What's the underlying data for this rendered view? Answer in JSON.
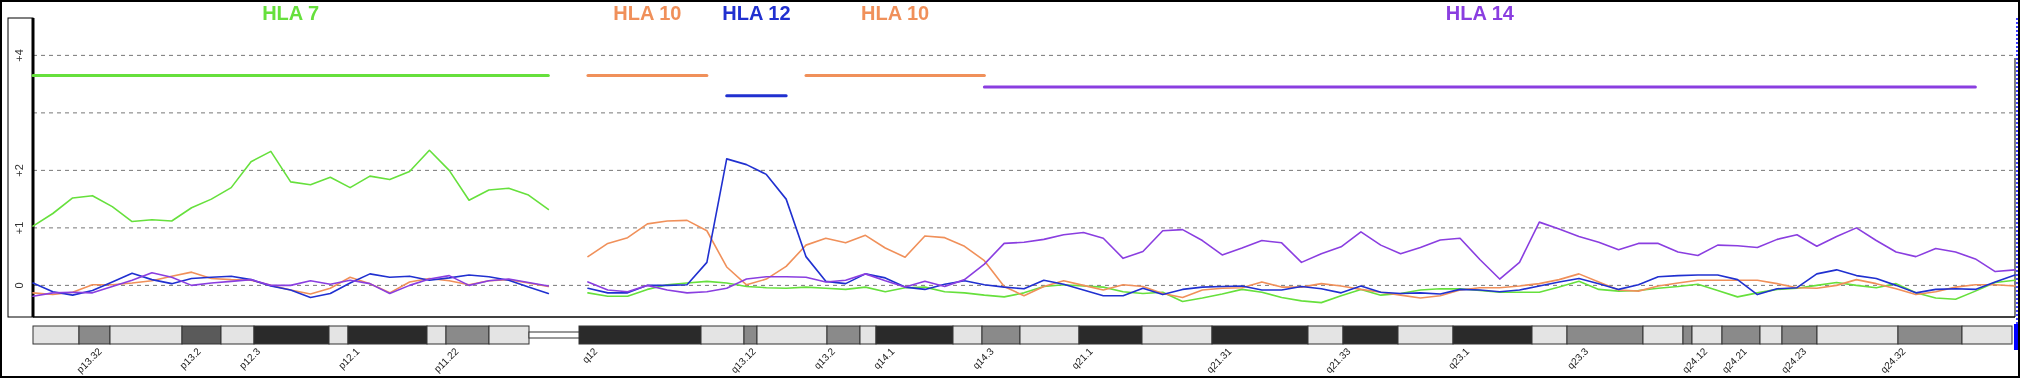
{
  "chart_data": {
    "type": "line",
    "ylim": [
      -0.55,
      4.65
    ],
    "categories": [
      null,
      null,
      null,
      "p13.32",
      null,
      null,
      null,
      null,
      "p13.2",
      null,
      null,
      "p12.3",
      null,
      null,
      null,
      null,
      "p12.1",
      null,
      null,
      null,
      null,
      "p11.22",
      null,
      null,
      null,
      null,
      null,
      null,
      "q12",
      null,
      null,
      null,
      null,
      null,
      null,
      null,
      "q13.12",
      null,
      null,
      null,
      "q13.2",
      null,
      null,
      "q14.1",
      null,
      null,
      null,
      null,
      "q14.3",
      null,
      null,
      null,
      null,
      "q21.1",
      null,
      null,
      null,
      null,
      null,
      null,
      "q21.31",
      null,
      null,
      null,
      null,
      null,
      "q21.33",
      null,
      null,
      null,
      null,
      null,
      "q23.1",
      null,
      null,
      null,
      null,
      null,
      "q23.3",
      null,
      null,
      null,
      null,
      null,
      "q24.12",
      null,
      "q24.21",
      null,
      null,
      "q24.23",
      null,
      null,
      null,
      null,
      "q24.32",
      null,
      null,
      null,
      null,
      null,
      null
    ],
    "yticks": [
      0,
      {
        "value": 1,
        "label": "+1"
      },
      {
        "value": 2,
        "label": "+2"
      },
      {
        "value": 3,
        "label": null
      },
      {
        "value": 4,
        "label": "+4"
      }
    ],
    "grid": "y",
    "series": [
      {
        "name": "HLA 7",
        "color": "#66e03c",
        "values": [
          3.65,
          3.65,
          3.65,
          3.65,
          3.65,
          3.65,
          3.65,
          3.65,
          3.65,
          3.65,
          3.65,
          3.65,
          3.65,
          3.65,
          3.65,
          3.65,
          3.65,
          3.65,
          3.65,
          3.65,
          3.65,
          3.65,
          3.65,
          3.65,
          3.65,
          3.65,
          3.65,
          null,
          null,
          null,
          null,
          null,
          null,
          null,
          null,
          null,
          null,
          null,
          null,
          null,
          null,
          null,
          null,
          null,
          null,
          null,
          null,
          null,
          null,
          null,
          null,
          null,
          null,
          null,
          null,
          null,
          null,
          null,
          null,
          null,
          null,
          null,
          null,
          null,
          null,
          null,
          null,
          null,
          null,
          null,
          null,
          null,
          null,
          null,
          null,
          null,
          null,
          null,
          null,
          null,
          null,
          null,
          null,
          null,
          null,
          null,
          null,
          null,
          null,
          null,
          null,
          null,
          null,
          null,
          null,
          null,
          null,
          null,
          null,
          null,
          null
        ]
      },
      {
        "name": "HLA 10",
        "color": "#f0905a",
        "values": [
          null,
          null,
          null,
          null,
          null,
          null,
          null,
          null,
          null,
          null,
          null,
          null,
          null,
          null,
          null,
          null,
          null,
          null,
          null,
          null,
          null,
          null,
          null,
          null,
          null,
          null,
          null,
          null,
          3.65,
          3.65,
          3.65,
          3.65,
          3.65,
          3.65,
          3.65,
          null,
          null,
          null,
          null,
          null,
          null,
          null,
          null,
          null,
          null,
          null,
          null,
          null,
          null,
          null,
          null,
          null,
          null,
          null,
          null,
          null,
          null,
          null,
          null,
          null,
          null,
          null,
          null,
          null,
          null,
          null,
          null,
          null,
          null,
          null,
          null,
          null,
          null,
          null,
          null,
          null,
          null,
          null,
          null,
          null,
          null,
          null,
          null,
          null,
          null,
          null,
          null,
          null,
          null,
          null,
          null,
          null,
          null,
          null,
          null,
          null,
          null,
          null,
          null,
          null,
          null
        ]
      },
      {
        "name": "HLA 12",
        "color": "#2030d0",
        "values": [
          null,
          null,
          null,
          null,
          null,
          null,
          null,
          null,
          null,
          null,
          null,
          null,
          null,
          null,
          null,
          null,
          null,
          null,
          null,
          null,
          null,
          null,
          null,
          null,
          null,
          null,
          null,
          null,
          null,
          null,
          null,
          null,
          null,
          null,
          null,
          3.3,
          3.3,
          3.3,
          3.3,
          null,
          null,
          null,
          null,
          null,
          null,
          null,
          null,
          null,
          null,
          null,
          null,
          null,
          null,
          null,
          null,
          null,
          null,
          null,
          null,
          null,
          null,
          null,
          null,
          null,
          null,
          null,
          null,
          null,
          null,
          null,
          null,
          null,
          null,
          null,
          null,
          null,
          null,
          null,
          null,
          null,
          null,
          null,
          null,
          null,
          null,
          null,
          null,
          null,
          null,
          null,
          null,
          null,
          null,
          null,
          null,
          null,
          null,
          null,
          null,
          null,
          null
        ]
      },
      {
        "name": "HLA 10",
        "color": "#f0905a",
        "values": [
          null,
          null,
          null,
          null,
          null,
          null,
          null,
          null,
          null,
          null,
          null,
          null,
          null,
          null,
          null,
          null,
          null,
          null,
          null,
          null,
          null,
          null,
          null,
          null,
          null,
          null,
          null,
          null,
          null,
          null,
          null,
          null,
          null,
          null,
          null,
          null,
          null,
          null,
          null,
          3.65,
          3.65,
          3.65,
          3.65,
          3.65,
          3.65,
          3.65,
          3.65,
          3.65,
          3.65,
          null,
          null,
          null,
          null,
          null,
          null,
          null,
          null,
          null,
          null,
          null,
          null,
          null,
          null,
          null,
          null,
          null,
          null,
          null,
          null,
          null,
          null,
          null,
          null,
          null,
          null,
          null,
          null,
          null,
          null,
          null,
          null,
          null,
          null,
          null,
          null,
          null,
          null,
          null,
          null,
          null,
          null,
          null,
          null,
          null,
          null,
          null,
          null,
          null,
          null,
          null,
          null
        ]
      },
      {
        "name": "HLA 14",
        "color": "#8a3ee0",
        "values": [
          null,
          null,
          null,
          null,
          null,
          null,
          null,
          null,
          null,
          null,
          null,
          null,
          null,
          null,
          null,
          null,
          null,
          null,
          null,
          null,
          null,
          null,
          null,
          null,
          null,
          null,
          null,
          null,
          null,
          null,
          null,
          null,
          null,
          null,
          null,
          null,
          null,
          null,
          null,
          null,
          null,
          null,
          null,
          null,
          null,
          null,
          null,
          null,
          3.45,
          3.45,
          3.45,
          3.45,
          3.45,
          3.45,
          3.45,
          3.45,
          3.45,
          3.45,
          3.45,
          3.45,
          3.45,
          3.45,
          3.45,
          3.45,
          3.45,
          3.45,
          3.45,
          3.45,
          3.45,
          3.45,
          3.45,
          3.45,
          3.45,
          3.45,
          3.45,
          3.45,
          3.45,
          3.45,
          3.45,
          3.45,
          3.45,
          3.45,
          3.45,
          3.45,
          3.45,
          3.45,
          3.45,
          3.45,
          3.45,
          3.45,
          3.45,
          3.45,
          3.45,
          3.45,
          3.45,
          3.45,
          3.45,
          3.45,
          3.45,
          null,
          null
        ]
      },
      {
        "color": "#66e03c",
        "values": [
          1.03,
          1.25,
          1.52,
          1.56,
          1.37,
          1.11,
          1.14,
          1.12,
          1.35,
          1.5,
          1.7,
          2.15,
          2.33,
          1.8,
          1.75,
          1.88,
          1.7,
          1.9,
          1.84,
          1.98,
          2.35,
          2.0,
          1.48,
          1.66,
          1.69,
          1.57,
          1.32,
          null,
          -0.13,
          -0.19,
          -0.19,
          -0.07,
          0.01,
          0.04,
          0.07,
          0.04,
          -0.02,
          -0.04,
          -0.05,
          -0.03,
          -0.05,
          -0.07,
          -0.03,
          -0.11,
          -0.04,
          -0.03,
          -0.11,
          -0.13,
          -0.17,
          -0.2,
          -0.13,
          -0.02,
          0.01,
          -0.01,
          -0.03,
          -0.11,
          -0.14,
          -0.12,
          -0.28,
          -0.22,
          -0.15,
          -0.07,
          -0.12,
          -0.21,
          -0.27,
          -0.3,
          -0.18,
          -0.07,
          -0.17,
          -0.14,
          -0.08,
          -0.06,
          -0.06,
          -0.09,
          -0.12,
          -0.12,
          -0.12,
          -0.03,
          0.07,
          -0.07,
          -0.1,
          -0.09,
          -0.05,
          -0.02,
          0.02,
          -0.09,
          -0.2,
          -0.13,
          -0.07,
          -0.05,
          0.0,
          0.05,
          0.0,
          -0.04,
          0.03,
          -0.13,
          -0.22,
          -0.24,
          -0.1,
          0.05,
          0.09
        ]
      },
      {
        "color": "#f0905a",
        "values": [
          -0.13,
          -0.16,
          -0.12,
          0.01,
          0.01,
          0.04,
          0.08,
          0.16,
          0.23,
          0.12,
          0.1,
          0.09,
          0.0,
          -0.08,
          -0.15,
          -0.05,
          0.14,
          0.03,
          -0.13,
          0.06,
          0.12,
          0.08,
          0.01,
          0.08,
          0.1,
          0.04,
          -0.02,
          null,
          0.5,
          0.73,
          0.83,
          1.07,
          1.12,
          1.13,
          0.95,
          0.32,
          0.01,
          0.11,
          0.33,
          0.7,
          0.82,
          0.74,
          0.87,
          0.65,
          0.49,
          0.86,
          0.83,
          0.68,
          0.43,
          -0.02,
          -0.18,
          -0.02,
          0.08,
          0.0,
          -0.08,
          0.01,
          -0.02,
          -0.14,
          -0.21,
          -0.08,
          -0.05,
          -0.04,
          0.06,
          -0.03,
          -0.03,
          0.03,
          -0.01,
          -0.07,
          -0.12,
          -0.17,
          -0.22,
          -0.18,
          -0.08,
          -0.04,
          -0.04,
          -0.01,
          0.03,
          0.1,
          0.2,
          0.06,
          -0.08,
          -0.1,
          -0.01,
          0.04,
          0.09,
          0.09,
          0.09,
          0.09,
          0.03,
          -0.04,
          -0.05,
          0.0,
          0.1,
          0.03,
          -0.06,
          -0.16,
          -0.11,
          -0.03,
          0.01,
          0.01,
          -0.01
        ]
      },
      {
        "color": "#2030d0",
        "values": [
          0.04,
          -0.11,
          -0.17,
          -0.09,
          0.06,
          0.21,
          0.1,
          0.03,
          0.12,
          0.14,
          0.16,
          0.1,
          -0.01,
          -0.08,
          -0.21,
          -0.14,
          0.04,
          0.2,
          0.14,
          0.16,
          0.09,
          0.13,
          0.18,
          0.15,
          0.09,
          -0.03,
          -0.14,
          null,
          -0.05,
          -0.13,
          -0.13,
          0.0,
          0.0,
          0.01,
          0.4,
          2.2,
          2.1,
          1.93,
          1.5,
          0.5,
          0.07,
          0.03,
          0.2,
          0.13,
          -0.03,
          -0.07,
          0.02,
          0.08,
          0.01,
          -0.03,
          -0.06,
          0.09,
          0.02,
          -0.08,
          -0.18,
          -0.18,
          -0.05,
          -0.16,
          -0.07,
          -0.03,
          -0.02,
          -0.01,
          -0.08,
          -0.08,
          -0.02,
          -0.06,
          -0.13,
          -0.01,
          -0.12,
          -0.14,
          -0.13,
          -0.15,
          -0.07,
          -0.08,
          -0.11,
          -0.08,
          -0.01,
          0.06,
          0.12,
          0.03,
          -0.07,
          0.01,
          0.15,
          0.17,
          0.18,
          0.18,
          0.1,
          -0.16,
          -0.06,
          -0.04,
          0.2,
          0.27,
          0.17,
          0.12,
          0.0,
          -0.13,
          -0.07,
          -0.06,
          -0.07,
          0.06,
          0.18
        ]
      },
      {
        "color": "#8a3ee0",
        "values": [
          -0.19,
          -0.13,
          -0.12,
          -0.13,
          -0.02,
          0.09,
          0.22,
          0.14,
          0.0,
          0.04,
          0.07,
          0.1,
          0.0,
          0.0,
          0.08,
          0.02,
          0.09,
          0.03,
          -0.14,
          0.0,
          0.11,
          0.17,
          0.0,
          0.08,
          0.11,
          0.05,
          -0.01,
          null,
          0.06,
          -0.08,
          -0.11,
          0.0,
          -0.08,
          -0.13,
          -0.11,
          -0.05,
          0.11,
          0.15,
          0.15,
          0.14,
          0.06,
          0.09,
          0.2,
          0.08,
          -0.03,
          0.07,
          -0.02,
          0.1,
          0.37,
          0.73,
          0.75,
          0.8,
          0.88,
          0.92,
          0.82,
          0.47,
          0.59,
          0.95,
          0.97,
          0.78,
          0.53,
          0.65,
          0.78,
          0.74,
          0.4,
          0.55,
          0.67,
          0.93,
          0.7,
          0.55,
          0.66,
          0.79,
          0.82,
          0.45,
          0.11,
          0.4,
          1.1,
          0.98,
          0.85,
          0.75,
          0.62,
          0.73,
          0.73,
          0.58,
          0.52,
          0.7,
          0.69,
          0.66,
          0.8,
          0.88,
          0.68,
          0.85,
          1.0,
          0.78,
          0.58,
          0.5,
          0.64,
          0.58,
          0.46,
          0.24,
          0.27
        ]
      }
    ]
  }
}
